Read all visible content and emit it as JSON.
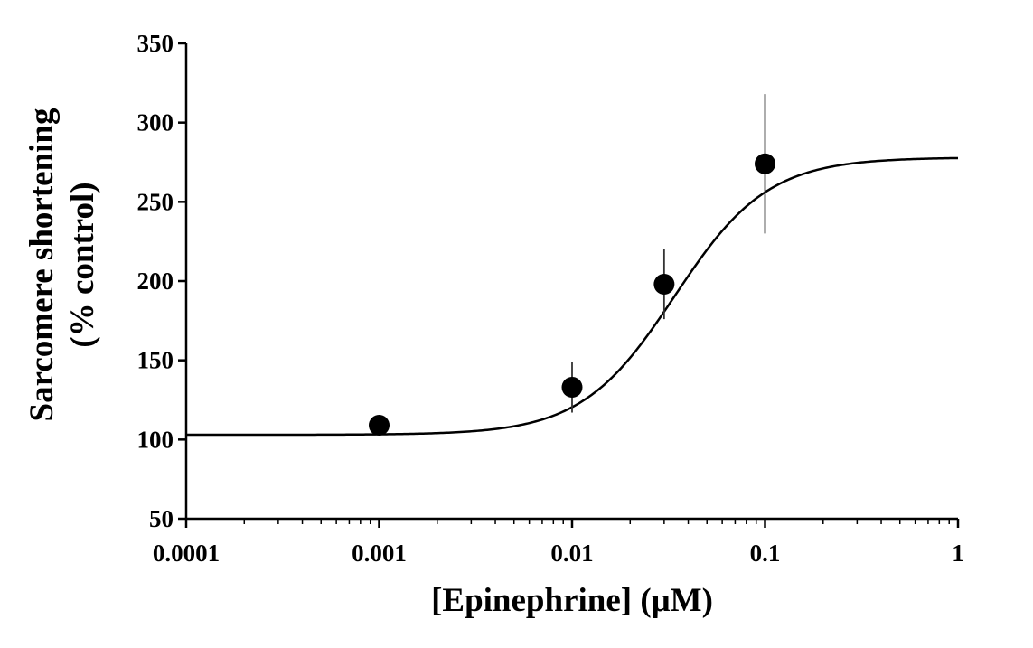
{
  "chart_data": {
    "type": "scatter",
    "title": "",
    "xlabel": "[Epinephrine] (μM)",
    "ylabel_lines": [
      "Sarcomere shortening",
      "(% control)"
    ],
    "x_scale": "log",
    "xlim": [
      0.0001,
      1
    ],
    "ylim": [
      50,
      350
    ],
    "x_ticks": [
      0.0001,
      0.001,
      0.01,
      0.1,
      1
    ],
    "x_tick_labels": [
      "0.0001",
      "0.001",
      "0.01",
      "0.1",
      "1"
    ],
    "y_ticks": [
      50,
      100,
      150,
      200,
      250,
      300,
      350
    ],
    "y_tick_labels": [
      "50",
      "100",
      "150",
      "200",
      "250",
      "300",
      "350"
    ],
    "grid": false,
    "legend": "none",
    "series": [
      {
        "points": [
          {
            "x": 0.001,
            "y": 109,
            "err": 0
          },
          {
            "x": 0.01,
            "y": 133,
            "err": 16
          },
          {
            "x": 0.03,
            "y": 198,
            "err": 22
          },
          {
            "x": 0.1,
            "y": 274,
            "err": 44
          }
        ]
      }
    ],
    "fit_curve": {
      "model": "four-parameter logistic",
      "bottom": 103,
      "top": 278,
      "ec50": 0.034,
      "hill": 1.8
    },
    "colors": {
      "marker": "#000000",
      "line": "#000000",
      "axis": "#000000"
    }
  }
}
